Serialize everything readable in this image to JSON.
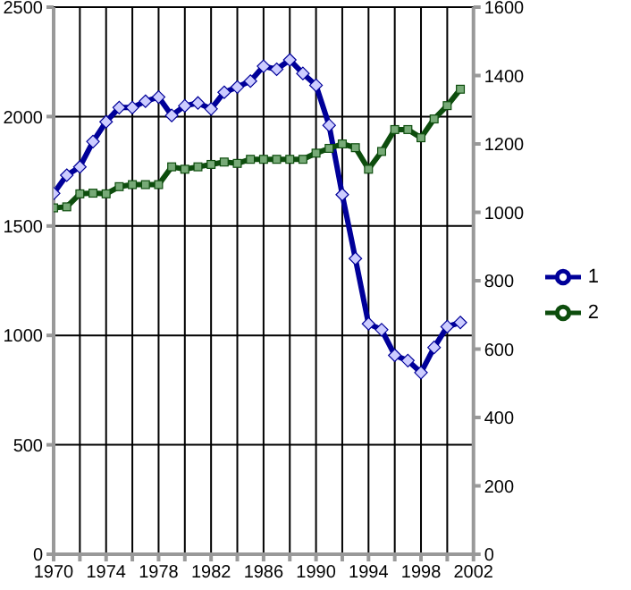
{
  "chart_data": {
    "type": "line",
    "x": [
      1970,
      1971,
      1972,
      1973,
      1974,
      1975,
      1976,
      1977,
      1978,
      1979,
      1980,
      1981,
      1982,
      1983,
      1984,
      1985,
      1986,
      1987,
      1988,
      1989,
      1990,
      1991,
      1992,
      1993,
      1994,
      1995,
      1996,
      1997,
      1998,
      1999,
      2000,
      2001
    ],
    "series": [
      {
        "name": "1",
        "color": "#000099",
        "marker": "diamond",
        "values": [
          1649,
          1732,
          1770,
          1886,
          1976,
          2041,
          2041,
          2070,
          2089,
          2005,
          2049,
          2062,
          2035,
          2111,
          2135,
          2162,
          2230,
          2216,
          2259,
          2197,
          2143,
          1960,
          1643,
          1351,
          1053,
          1026,
          909,
          885,
          830,
          945,
          1040,
          1059
        ]
      },
      {
        "name": "2",
        "color": "#0d4d0d",
        "marker": "square",
        "axis": "y2",
        "values": [
          1013,
          1016,
          1054,
          1056,
          1054,
          1075,
          1081,
          1081,
          1081,
          1133,
          1126,
          1133,
          1140,
          1147,
          1143,
          1155,
          1155,
          1155,
          1155,
          1155,
          1173,
          1187,
          1200,
          1189,
          1126,
          1178,
          1242,
          1242,
          1218,
          1273,
          1312,
          1360
        ]
      }
    ],
    "xlim": [
      1970,
      2002
    ],
    "xticks": [
      1970,
      {
        "value": 1972,
        "label": null
      },
      1974,
      {
        "value": 1976,
        "label": null
      },
      1978,
      {
        "value": 1980,
        "label": null
      },
      1982,
      {
        "value": 1984,
        "label": null
      },
      1986,
      {
        "value": 1988,
        "label": null
      },
      1990,
      {
        "value": 1992,
        "label": null
      },
      1994,
      {
        "value": 1996,
        "label": null
      },
      1998,
      {
        "value": 2000,
        "label": null
      },
      2002
    ],
    "ylim": [
      0,
      2500
    ],
    "yticks": [
      0,
      500,
      1000,
      1500,
      2000,
      2500
    ],
    "y2lim": [
      0,
      1600
    ],
    "y2ticks": [
      0,
      200,
      400,
      600,
      800,
      1000,
      1200,
      1400,
      1600
    ],
    "grid": true,
    "legend": "right",
    "line_style": "solid"
  }
}
